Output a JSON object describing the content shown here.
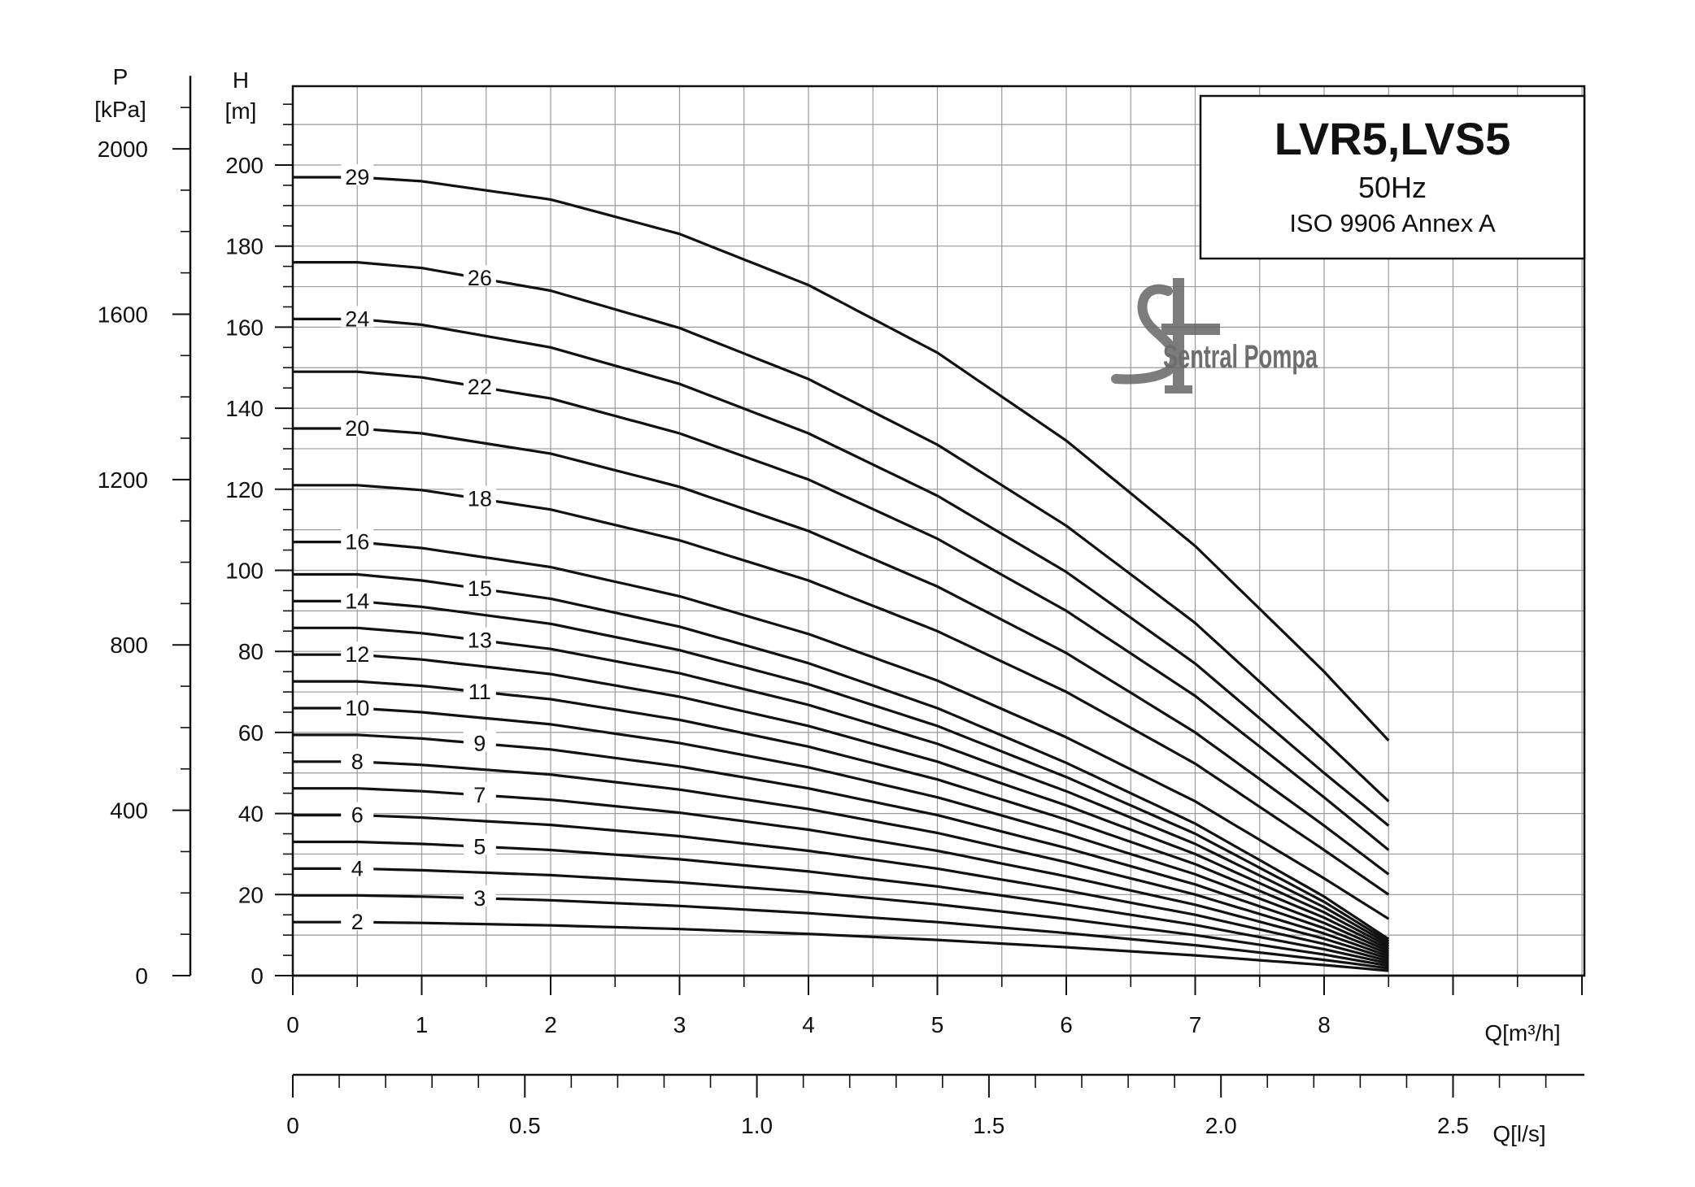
{
  "chart_data": {
    "type": "line",
    "title": "LVR5,LVS5",
    "subtitle": "50Hz",
    "standard": "ISO 9906 Annex A",
    "watermark": "Sentral Pompa",
    "x_axis": {
      "label": "Q[m³/h]",
      "range": [
        0,
        10
      ],
      "tick_labels": [
        "0",
        "1",
        "2",
        "3",
        "4",
        "5",
        "6",
        "7",
        "8"
      ],
      "tick_values": [
        0,
        1,
        2,
        3,
        4,
        5,
        6,
        7,
        8
      ]
    },
    "x_axis_secondary": {
      "label": "Q[l/s]",
      "range": [
        0,
        2.78
      ],
      "tick_labels": [
        "0",
        "0.5",
        "1.0",
        "1.5",
        "2.0",
        "2.5"
      ],
      "tick_values": [
        0,
        0.5,
        1.0,
        1.5,
        2.0,
        2.5
      ]
    },
    "y_axis": {
      "label": "H",
      "unit": "[m]",
      "range": [
        0,
        220
      ],
      "tick_labels": [
        "0",
        "20",
        "40",
        "60",
        "80",
        "100",
        "120",
        "140",
        "160",
        "180",
        "200"
      ],
      "tick_values": [
        0,
        20,
        40,
        60,
        80,
        100,
        120,
        140,
        160,
        180,
        200
      ]
    },
    "y_axis_secondary": {
      "label": "P",
      "unit": "[kPa]",
      "range": [
        0,
        2157
      ],
      "tick_labels": [
        "0",
        "400",
        "800",
        "1200",
        "1600",
        "2000"
      ],
      "tick_values": [
        0,
        400,
        800,
        1200,
        1600,
        2000
      ]
    },
    "grid": true,
    "x_max": 8.5,
    "series": [
      {
        "name": "2",
        "values": [
          [
            0,
            13.2
          ],
          [
            0.5,
            13.2
          ],
          [
            1,
            13.0
          ],
          [
            2,
            12.4
          ],
          [
            3,
            11.5
          ],
          [
            4,
            10.3
          ],
          [
            5,
            8.8
          ],
          [
            6,
            7.0
          ],
          [
            7,
            5.0
          ],
          [
            8,
            2.6
          ],
          [
            8.5,
            1.2
          ]
        ],
        "label_at": 0.5
      },
      {
        "name": "3",
        "values": [
          [
            0,
            19.8
          ],
          [
            0.5,
            19.8
          ],
          [
            1,
            19.5
          ],
          [
            2,
            18.6
          ],
          [
            3,
            17.2
          ],
          [
            4,
            15.4
          ],
          [
            5,
            13.2
          ],
          [
            6,
            10.5
          ],
          [
            7,
            7.5
          ],
          [
            8,
            3.9
          ],
          [
            8.5,
            1.8
          ]
        ],
        "label_at": 1.45
      },
      {
        "name": "4",
        "values": [
          [
            0,
            26.4
          ],
          [
            0.5,
            26.4
          ],
          [
            1,
            26.0
          ],
          [
            2,
            24.8
          ],
          [
            3,
            23.0
          ],
          [
            4,
            20.6
          ],
          [
            5,
            17.6
          ],
          [
            6,
            14.0
          ],
          [
            7,
            10.0
          ],
          [
            8,
            5.2
          ],
          [
            8.5,
            2.4
          ]
        ],
        "label_at": 0.5
      },
      {
        "name": "5",
        "values": [
          [
            0,
            33.0
          ],
          [
            0.5,
            33.0
          ],
          [
            1,
            32.5
          ],
          [
            2,
            31.0
          ],
          [
            3,
            28.7
          ],
          [
            4,
            25.7
          ],
          [
            5,
            22.0
          ],
          [
            6,
            17.5
          ],
          [
            7,
            12.5
          ],
          [
            8,
            6.5
          ],
          [
            8.5,
            3.0
          ]
        ],
        "label_at": 1.45
      },
      {
        "name": "6",
        "values": [
          [
            0,
            39.6
          ],
          [
            0.5,
            39.6
          ],
          [
            1,
            39.0
          ],
          [
            2,
            37.2
          ],
          [
            3,
            34.4
          ],
          [
            4,
            30.8
          ],
          [
            5,
            26.4
          ],
          [
            6,
            21.0
          ],
          [
            7,
            15.0
          ],
          [
            8,
            7.8
          ],
          [
            8.5,
            3.6
          ]
        ],
        "label_at": 0.5
      },
      {
        "name": "7",
        "values": [
          [
            0,
            46.2
          ],
          [
            0.5,
            46.2
          ],
          [
            1,
            45.5
          ],
          [
            2,
            43.4
          ],
          [
            3,
            40.2
          ],
          [
            4,
            36.0
          ],
          [
            5,
            30.8
          ],
          [
            6,
            24.5
          ],
          [
            7,
            17.5
          ],
          [
            8,
            9.1
          ],
          [
            8.5,
            4.2
          ]
        ],
        "label_at": 1.45
      },
      {
        "name": "8",
        "values": [
          [
            0,
            52.8
          ],
          [
            0.5,
            52.8
          ],
          [
            1,
            52.0
          ],
          [
            2,
            49.6
          ],
          [
            3,
            45.9
          ],
          [
            4,
            41.1
          ],
          [
            5,
            35.2
          ],
          [
            6,
            28.0
          ],
          [
            7,
            20.0
          ],
          [
            8,
            10.4
          ],
          [
            8.5,
            4.8
          ]
        ],
        "label_at": 0.5
      },
      {
        "name": "9",
        "values": [
          [
            0,
            59.4
          ],
          [
            0.5,
            59.4
          ],
          [
            1,
            58.5
          ],
          [
            2,
            55.8
          ],
          [
            3,
            51.6
          ],
          [
            4,
            46.2
          ],
          [
            5,
            39.6
          ],
          [
            6,
            31.5
          ],
          [
            7,
            22.5
          ],
          [
            8,
            11.7
          ],
          [
            8.5,
            5.4
          ]
        ],
        "label_at": 1.45
      },
      {
        "name": "10",
        "values": [
          [
            0,
            66.0
          ],
          [
            0.5,
            66.0
          ],
          [
            1,
            65.0
          ],
          [
            2,
            62.0
          ],
          [
            3,
            57.4
          ],
          [
            4,
            51.4
          ],
          [
            5,
            44.0
          ],
          [
            6,
            35.0
          ],
          [
            7,
            25.0
          ],
          [
            8,
            13.0
          ],
          [
            8.5,
            6.0
          ]
        ],
        "label_at": 0.5
      },
      {
        "name": "11",
        "values": [
          [
            0,
            72.6
          ],
          [
            0.5,
            72.6
          ],
          [
            1,
            71.5
          ],
          [
            2,
            68.2
          ],
          [
            3,
            63.1
          ],
          [
            4,
            56.5
          ],
          [
            5,
            48.4
          ],
          [
            6,
            38.5
          ],
          [
            7,
            27.5
          ],
          [
            8,
            14.3
          ],
          [
            8.5,
            6.6
          ]
        ],
        "label_at": 1.45
      },
      {
        "name": "12",
        "values": [
          [
            0,
            79.2
          ],
          [
            0.5,
            79.2
          ],
          [
            1,
            78.0
          ],
          [
            2,
            74.4
          ],
          [
            3,
            68.8
          ],
          [
            4,
            61.6
          ],
          [
            5,
            52.8
          ],
          [
            6,
            42.0
          ],
          [
            7,
            30.0
          ],
          [
            8,
            15.6
          ],
          [
            8.5,
            7.2
          ]
        ],
        "label_at": 0.5
      },
      {
        "name": "13",
        "values": [
          [
            0,
            85.8
          ],
          [
            0.5,
            85.8
          ],
          [
            1,
            84.5
          ],
          [
            2,
            80.6
          ],
          [
            3,
            74.6
          ],
          [
            4,
            66.8
          ],
          [
            5,
            57.2
          ],
          [
            6,
            45.5
          ],
          [
            7,
            32.5
          ],
          [
            8,
            16.9
          ],
          [
            8.5,
            7.8
          ]
        ],
        "label_at": 1.45
      },
      {
        "name": "14",
        "values": [
          [
            0,
            92.4
          ],
          [
            0.5,
            92.4
          ],
          [
            1,
            91.0
          ],
          [
            2,
            86.8
          ],
          [
            3,
            80.3
          ],
          [
            4,
            71.9
          ],
          [
            5,
            61.6
          ],
          [
            6,
            49.0
          ],
          [
            7,
            35.0
          ],
          [
            8,
            18.2
          ],
          [
            8.5,
            8.4
          ]
        ],
        "label_at": 0.5
      },
      {
        "name": "15",
        "values": [
          [
            0,
            99.0
          ],
          [
            0.5,
            99.0
          ],
          [
            1,
            97.5
          ],
          [
            2,
            93.0
          ],
          [
            3,
            86.1
          ],
          [
            4,
            77.1
          ],
          [
            5,
            66.0
          ],
          [
            6,
            52.5
          ],
          [
            7,
            37.5
          ],
          [
            8,
            19.5
          ],
          [
            8.5,
            9.0
          ]
        ],
        "label_at": 1.45
      },
      {
        "name": "16",
        "values": [
          [
            0,
            107.0
          ],
          [
            0.5,
            107.0
          ],
          [
            1,
            105.5
          ],
          [
            2,
            100.8
          ],
          [
            3,
            93.6
          ],
          [
            4,
            84.3
          ],
          [
            5,
            72.8
          ],
          [
            6,
            58.8
          ],
          [
            7,
            43.0
          ],
          [
            8,
            24.0
          ],
          [
            8.5,
            14.0
          ]
        ],
        "label_at": 0.5
      },
      {
        "name": "18",
        "values": [
          [
            0,
            121.0
          ],
          [
            0.5,
            121.0
          ],
          [
            1,
            119.8
          ],
          [
            2,
            115.0
          ],
          [
            3,
            107.4
          ],
          [
            4,
            97.5
          ],
          [
            5,
            85.0
          ],
          [
            6,
            70.0
          ],
          [
            7,
            52.3
          ],
          [
            8,
            31.0
          ],
          [
            8.5,
            20.0
          ]
        ],
        "label_at": 1.45
      },
      {
        "name": "20",
        "values": [
          [
            0,
            135.0
          ],
          [
            0.5,
            135.0
          ],
          [
            1,
            133.8
          ],
          [
            2,
            128.8
          ],
          [
            3,
            120.6
          ],
          [
            4,
            109.7
          ],
          [
            5,
            96.0
          ],
          [
            6,
            79.6
          ],
          [
            7,
            60.0
          ],
          [
            8,
            37.0
          ],
          [
            8.5,
            25.0
          ]
        ],
        "label_at": 0.5
      },
      {
        "name": "22",
        "values": [
          [
            0,
            149.0
          ],
          [
            0.5,
            149.0
          ],
          [
            1,
            147.6
          ],
          [
            2,
            142.4
          ],
          [
            3,
            133.8
          ],
          [
            4,
            122.4
          ],
          [
            5,
            107.8
          ],
          [
            6,
            90.0
          ],
          [
            7,
            69.0
          ],
          [
            8,
            44.0
          ],
          [
            8.5,
            31.0
          ]
        ],
        "label_at": 1.45
      },
      {
        "name": "24",
        "values": [
          [
            0,
            162.0
          ],
          [
            0.5,
            162.0
          ],
          [
            1,
            160.6
          ],
          [
            2,
            155.0
          ],
          [
            3,
            146.0
          ],
          [
            4,
            133.8
          ],
          [
            5,
            118.4
          ],
          [
            6,
            99.6
          ],
          [
            7,
            77.0
          ],
          [
            8,
            50.0
          ],
          [
            8.5,
            37.0
          ]
        ],
        "label_at": 0.5
      },
      {
        "name": "26",
        "values": [
          [
            0,
            176.0
          ],
          [
            0.5,
            176.0
          ],
          [
            1,
            174.6
          ],
          [
            2,
            169.0
          ],
          [
            3,
            159.8
          ],
          [
            4,
            147.2
          ],
          [
            5,
            131.0
          ],
          [
            6,
            111.0
          ],
          [
            7,
            87.0
          ],
          [
            8,
            58.0
          ],
          [
            8.5,
            43.0
          ]
        ],
        "label_at": 1.45
      },
      {
        "name": "29",
        "values": [
          [
            0,
            197.0
          ],
          [
            0.5,
            197.0
          ],
          [
            1,
            196.0
          ],
          [
            2,
            191.5
          ],
          [
            3,
            183.0
          ],
          [
            4,
            170.4
          ],
          [
            5,
            153.7
          ],
          [
            6,
            132.0
          ],
          [
            7,
            106.0
          ],
          [
            8,
            75.0
          ],
          [
            8.5,
            58.0
          ]
        ],
        "label_at": 0.5
      }
    ]
  }
}
